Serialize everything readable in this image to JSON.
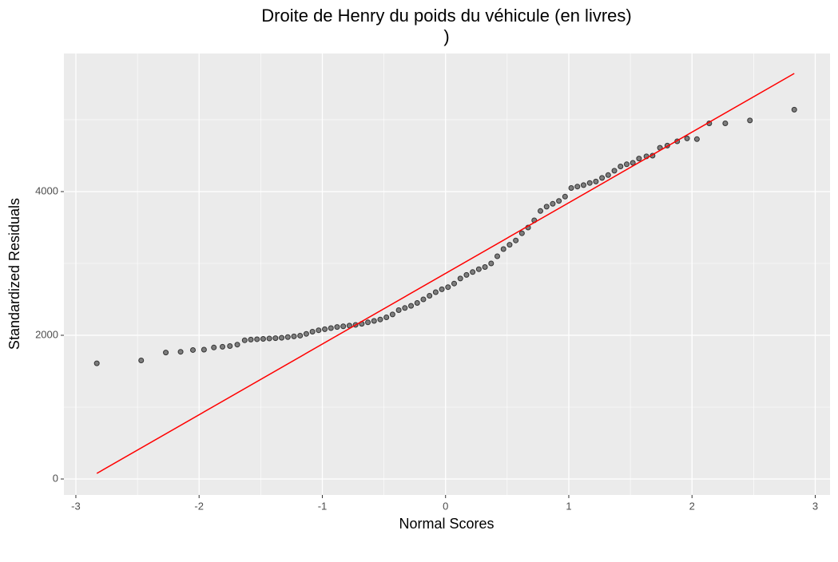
{
  "chart_data": {
    "type": "scatter",
    "title": [
      "Droite de Henry du poids du véhicule (en livres)",
      ")"
    ],
    "x_label": "Normal Scores",
    "y_label": "Standardized Residuals",
    "xlim": [
      -3.097,
      3.12
    ],
    "ylim": [
      -222,
      5922
    ],
    "xticks": [
      -3,
      -2,
      -1,
      0,
      1,
      2,
      3
    ],
    "yticks": [
      0,
      2000,
      4000
    ],
    "xminor": [
      -2.5,
      -1.5,
      -0.5,
      0.5,
      1.5,
      2.5
    ],
    "yminor": [
      1000,
      3000,
      5000
    ],
    "grid": true,
    "color": "#333333",
    "reference_line": {
      "x": [
        -2.83,
        2.83
      ],
      "y": [
        78,
        5644
      ],
      "color": "#ff0000"
    },
    "x": [
      -2.83,
      -2.47,
      -2.27,
      -2.15,
      -2.05,
      -1.96,
      -1.88,
      -1.81,
      -1.75,
      -1.69,
      -1.63,
      -1.58,
      -1.53,
      -1.48,
      -1.43,
      -1.38,
      -1.33,
      -1.28,
      -1.23,
      -1.18,
      -1.13,
      -1.08,
      -1.03,
      -0.98,
      -0.93,
      -0.88,
      -0.83,
      -0.78,
      -0.73,
      -0.68,
      -0.63,
      -0.58,
      -0.53,
      -0.48,
      -0.43,
      -0.38,
      -0.33,
      -0.28,
      -0.23,
      -0.18,
      -0.13,
      -0.08,
      -0.03,
      0.02,
      0.07,
      0.12,
      0.17,
      0.22,
      0.27,
      0.32,
      0.37,
      0.42,
      0.47,
      0.52,
      0.57,
      0.62,
      0.67,
      0.72,
      0.77,
      0.82,
      0.87,
      0.92,
      0.97,
      1.02,
      1.07,
      1.12,
      1.17,
      1.22,
      1.27,
      1.32,
      1.37,
      1.42,
      1.47,
      1.52,
      1.57,
      1.63,
      1.68,
      1.74,
      1.8,
      1.88,
      1.96,
      2.04,
      2.14,
      2.27,
      2.47,
      2.83
    ],
    "values": [
      1610,
      1650,
      1760,
      1770,
      1795,
      1800,
      1830,
      1840,
      1850,
      1870,
      1930,
      1940,
      1945,
      1950,
      1955,
      1960,
      1965,
      1975,
      1985,
      1995,
      2020,
      2050,
      2070,
      2085,
      2100,
      2115,
      2125,
      2135,
      2145,
      2160,
      2180,
      2200,
      2220,
      2250,
      2290,
      2350,
      2380,
      2410,
      2450,
      2500,
      2550,
      2600,
      2640,
      2670,
      2720,
      2790,
      2840,
      2880,
      2920,
      2950,
      3000,
      3100,
      3200,
      3260,
      3320,
      3420,
      3500,
      3600,
      3730,
      3790,
      3830,
      3870,
      3930,
      4050,
      4070,
      4090,
      4120,
      4140,
      4190,
      4230,
      4290,
      4350,
      4380,
      4400,
      4460,
      4490,
      4500,
      4610,
      4640,
      4700,
      4740,
      4730,
      4950,
      4950,
      4990,
      5140
    ]
  }
}
